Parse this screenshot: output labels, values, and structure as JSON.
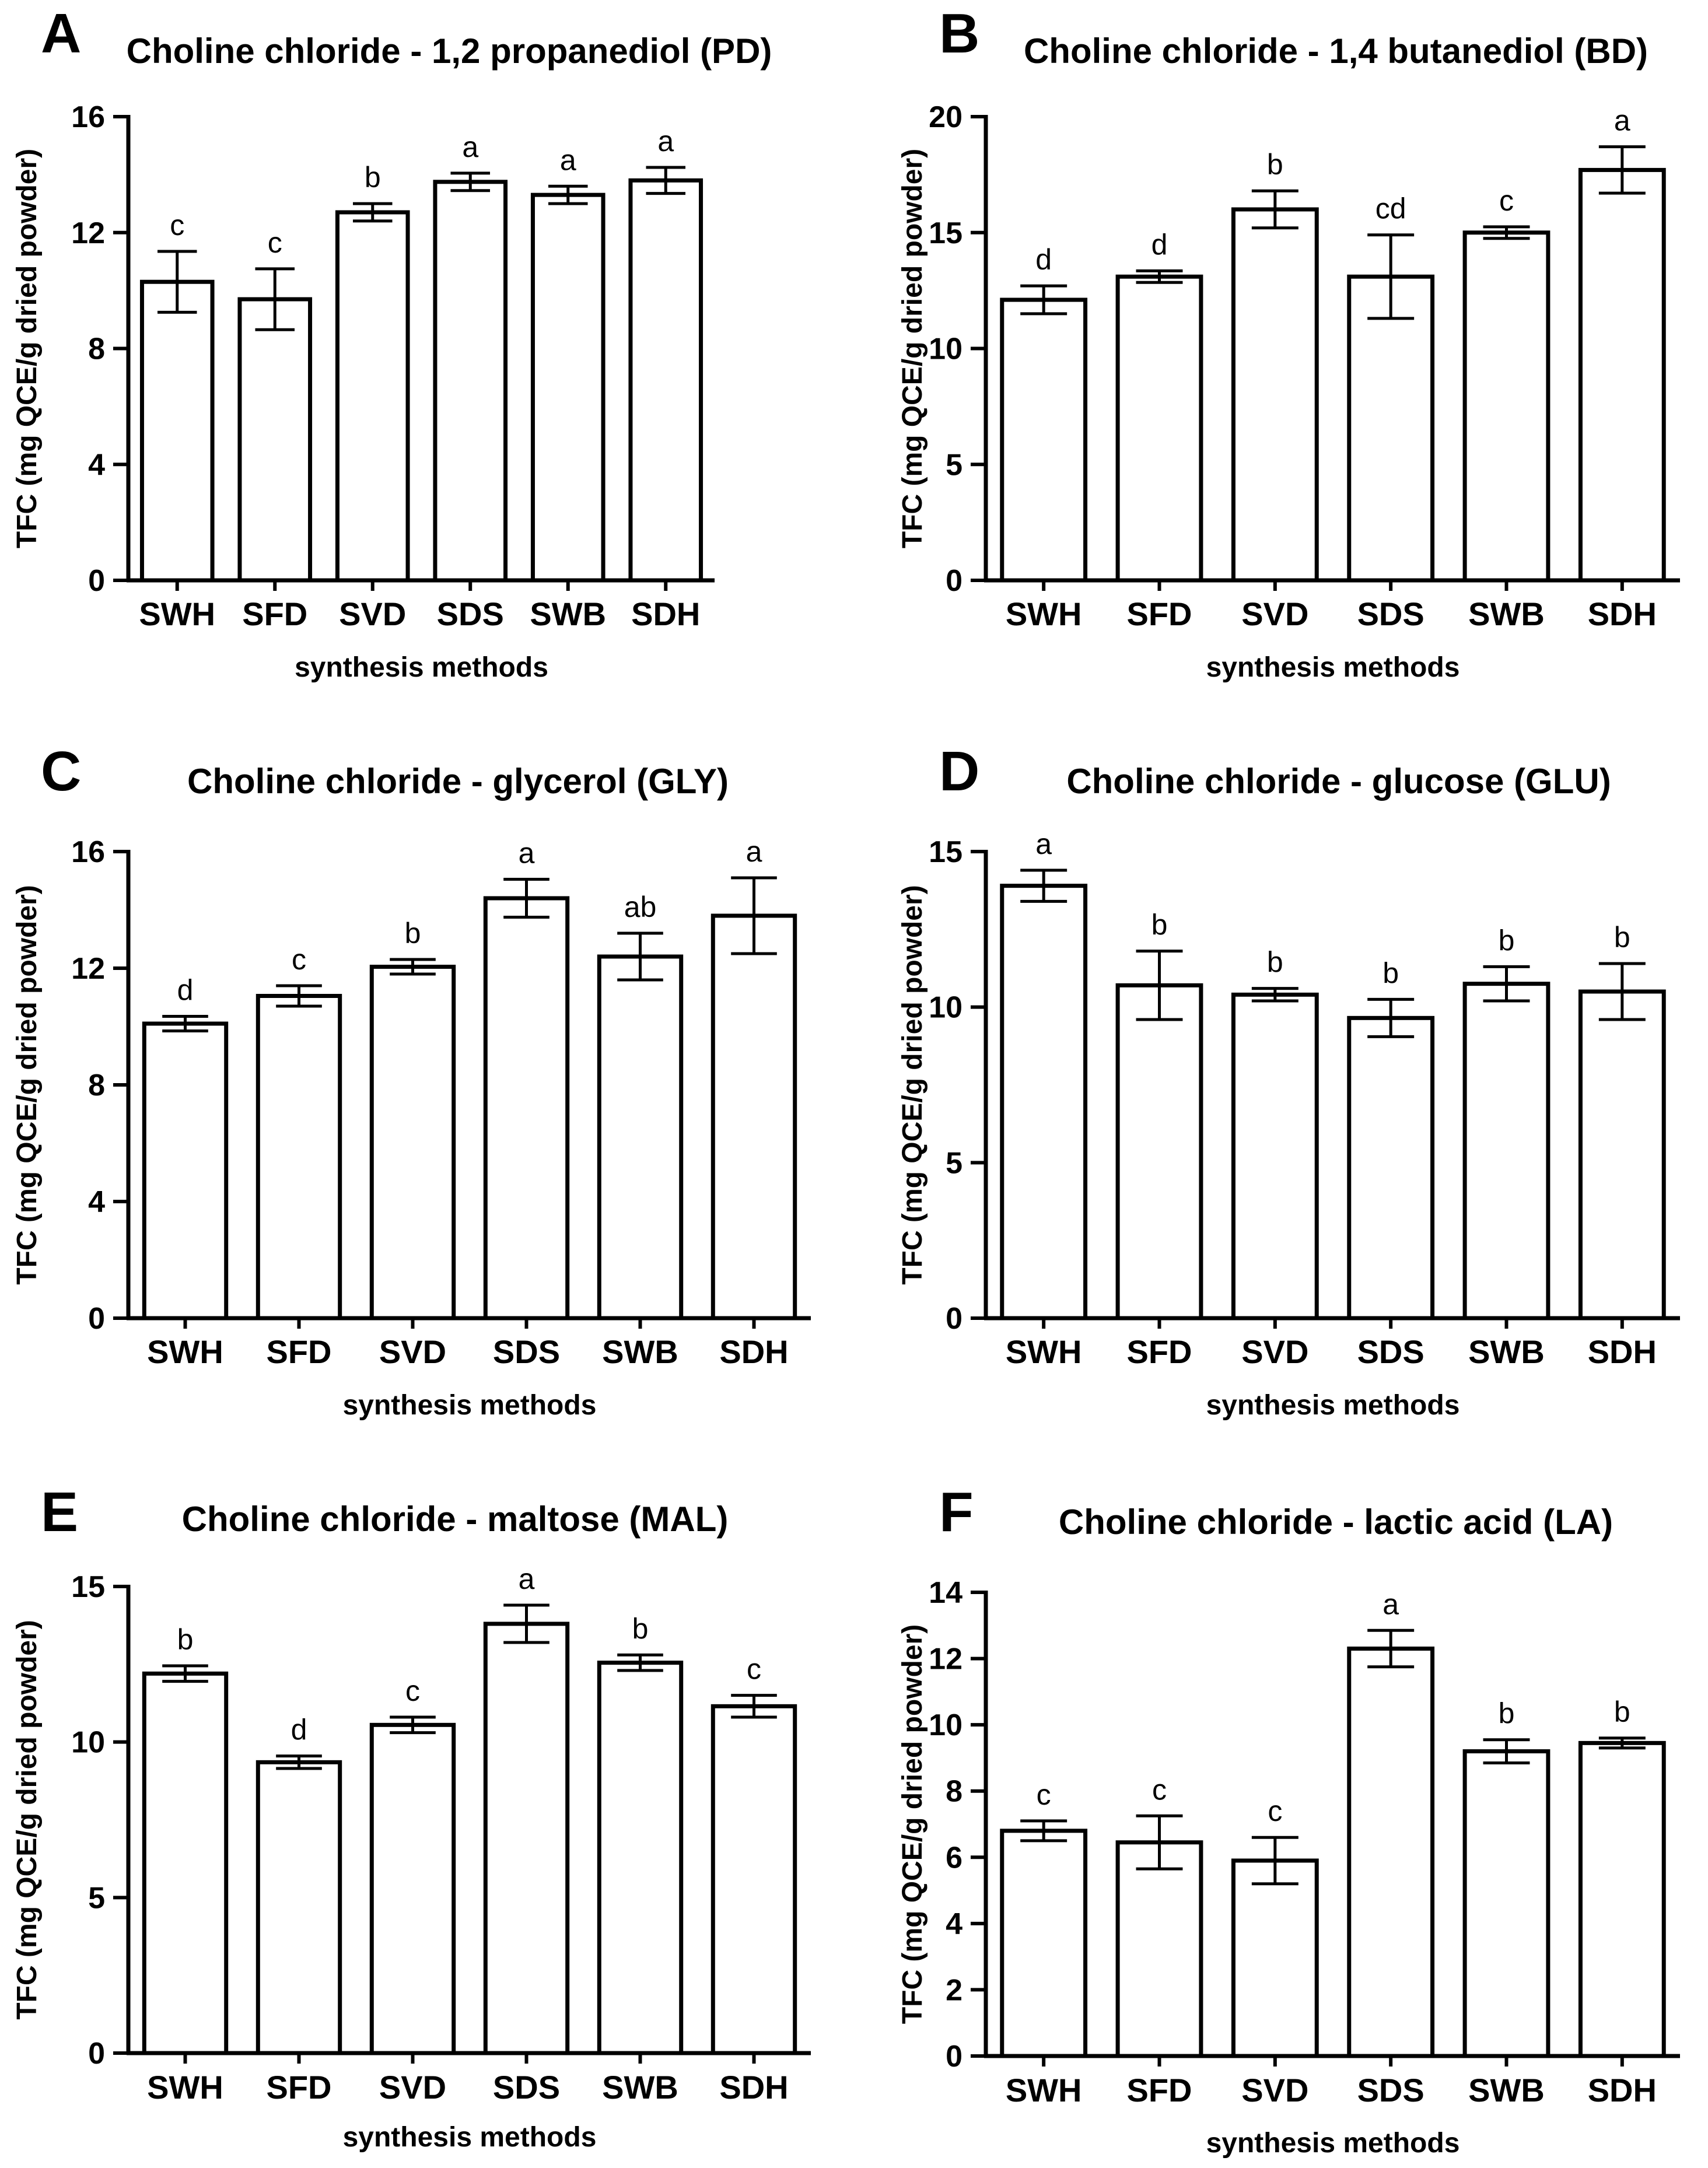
{
  "chart_data": [
    {
      "panel": "A",
      "type": "bar",
      "title": "Choline chloride - 1,2 propanediol (PD)",
      "xlabel": "synthesis methods",
      "ylabel": "TFC (mg QCE/g dried powder)",
      "ylim": [
        0,
        16
      ],
      "yticks": [
        0,
        4,
        8,
        12,
        16
      ],
      "categories": [
        "SWH",
        "SFD",
        "SVD",
        "SDS",
        "SWB",
        "SDH"
      ],
      "values": [
        10.3,
        9.7,
        12.7,
        13.75,
        13.3,
        13.8
      ],
      "errors": [
        1.05,
        1.05,
        0.3,
        0.3,
        0.3,
        0.45
      ],
      "letters": [
        "c",
        "c",
        "b",
        "a",
        "a",
        "a"
      ]
    },
    {
      "panel": "B",
      "type": "bar",
      "title": "Choline chloride - 1,4 butanediol (BD)",
      "xlabel": "synthesis methods",
      "ylabel": "TFC (mg QCE/g dried powder)",
      "ylim": [
        0,
        20
      ],
      "yticks": [
        0,
        5,
        10,
        15,
        20
      ],
      "categories": [
        "SWH",
        "SFD",
        "SVD",
        "SDS",
        "SWB",
        "SDH"
      ],
      "values": [
        12.1,
        13.1,
        16.0,
        13.1,
        15.0,
        17.7
      ],
      "errors": [
        0.6,
        0.25,
        0.8,
        1.8,
        0.25,
        1.0
      ],
      "letters": [
        "d",
        "d",
        "b",
        "cd",
        "c",
        "a"
      ]
    },
    {
      "panel": "C",
      "type": "bar",
      "title": "Choline chloride - glycerol (GLY)",
      "xlabel": "synthesis methods",
      "ylabel": "TFC (mg QCE/g dried powder)",
      "ylim": [
        0,
        16
      ],
      "yticks": [
        0,
        4,
        8,
        12,
        16
      ],
      "categories": [
        "SWH",
        "SFD",
        "SVD",
        "SDS",
        "SWB",
        "SDH"
      ],
      "values": [
        10.1,
        11.05,
        12.05,
        14.4,
        12.4,
        13.8
      ],
      "errors": [
        0.25,
        0.35,
        0.25,
        0.65,
        0.8,
        1.3
      ],
      "letters": [
        "d",
        "c",
        "b",
        "a",
        "ab",
        "a"
      ]
    },
    {
      "panel": "D",
      "type": "bar",
      "title": "Choline chloride - glucose (GLU)",
      "xlabel": "synthesis methods",
      "ylabel": "TFC (mg QCE/g dried powder)",
      "ylim": [
        0,
        15
      ],
      "yticks": [
        0,
        5,
        10,
        15
      ],
      "categories": [
        "SWH",
        "SFD",
        "SVD",
        "SDS",
        "SWB",
        "SDH"
      ],
      "values": [
        13.9,
        10.7,
        10.4,
        9.65,
        10.75,
        10.5
      ],
      "errors": [
        0.5,
        1.1,
        0.2,
        0.6,
        0.55,
        0.9
      ],
      "letters": [
        "a",
        "b",
        "b",
        "b",
        "b",
        "b"
      ]
    },
    {
      "panel": "E",
      "type": "bar",
      "title": "Choline chloride - maltose (MAL)",
      "xlabel": "synthesis methods",
      "ylabel": "TFC (mg QCE/g dried powder)",
      "ylim": [
        0,
        15
      ],
      "yticks": [
        0,
        5,
        10,
        15
      ],
      "categories": [
        "SWH",
        "SFD",
        "SVD",
        "SDS",
        "SWB",
        "SDH"
      ],
      "values": [
        12.2,
        9.35,
        10.55,
        13.8,
        12.55,
        11.15
      ],
      "errors": [
        0.25,
        0.2,
        0.25,
        0.6,
        0.25,
        0.35
      ],
      "letters": [
        "b",
        "d",
        "c",
        "a",
        "b",
        "c"
      ]
    },
    {
      "panel": "F",
      "type": "bar",
      "title": "Choline chloride - lactic acid (LA)",
      "xlabel": "synthesis methods",
      "ylabel": "TFC (mg QCE/g dried powder)",
      "ylim": [
        0,
        14
      ],
      "yticks": [
        0,
        2,
        4,
        6,
        8,
        10,
        12,
        14
      ],
      "categories": [
        "SWH",
        "SFD",
        "SVD",
        "SDS",
        "SWB",
        "SDH"
      ],
      "values": [
        6.8,
        6.45,
        5.9,
        12.3,
        9.2,
        9.45
      ],
      "errors": [
        0.3,
        0.8,
        0.7,
        0.55,
        0.35,
        0.15
      ],
      "letters": [
        "c",
        "c",
        "c",
        "a",
        "b",
        "b"
      ]
    }
  ]
}
